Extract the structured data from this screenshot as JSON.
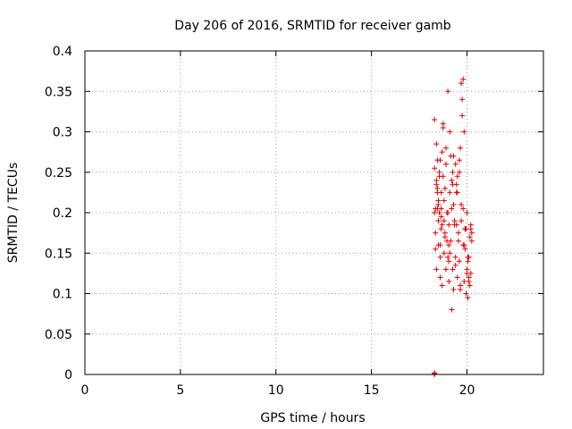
{
  "chart_data": {
    "type": "scatter",
    "title": "Day 206 of 2016, SRMTID for receiver gamb",
    "xlabel": "GPS time / hours",
    "ylabel": "SRMTID / TECUs",
    "xlim": [
      0,
      24
    ],
    "ylim": [
      0,
      0.4
    ],
    "x_ticks": [
      0,
      5,
      10,
      15,
      20
    ],
    "y_ticks": [
      0,
      0.05,
      0.1,
      0.15,
      0.2,
      0.25,
      0.3,
      0.35,
      0.4
    ],
    "x_tick_labels": [
      "0",
      "5",
      "10",
      "15",
      "20"
    ],
    "y_tick_labels": [
      "0",
      "0.05",
      "0.1",
      "0.15",
      "0.2",
      "0.25",
      "0.3",
      "0.35",
      "0.4"
    ],
    "grid": true,
    "marker": "plus",
    "color": "#e00000",
    "series": [
      {
        "x": [
          18.3,
          18.3,
          18.3,
          18.35,
          18.35,
          18.4,
          18.4,
          18.4,
          18.45,
          18.45,
          18.5,
          18.5,
          18.5,
          18.55,
          18.55,
          18.6,
          18.6,
          18.6,
          18.65,
          18.65,
          18.7,
          18.7,
          18.75,
          18.75,
          18.8,
          18.8,
          18.85,
          18.9,
          18.9,
          18.95,
          19.0,
          19.0,
          19.05,
          19.05,
          19.1,
          19.1,
          19.15,
          19.2,
          19.2,
          19.25,
          19.3,
          19.3,
          19.35,
          19.4,
          19.4,
          19.45,
          19.5,
          19.5,
          19.55,
          19.6,
          19.6,
          19.65,
          19.7,
          19.7,
          19.75,
          19.8,
          19.8,
          19.85,
          19.9,
          19.9,
          19.95,
          20.0,
          20.0,
          20.05,
          20.1,
          20.1,
          20.15,
          20.2,
          20.2,
          20.25,
          18.35,
          18.45,
          18.55,
          18.65,
          18.75,
          18.85,
          18.95,
          19.05,
          19.15,
          19.25,
          19.35,
          19.45,
          19.55,
          19.65,
          19.75,
          19.85,
          19.95,
          20.05,
          20.15,
          20.25,
          18.4,
          18.6,
          18.8,
          19.0,
          19.2,
          19.4,
          19.6,
          19.8,
          20.0,
          20.2,
          18.5,
          18.7,
          18.9,
          19.1,
          19.3,
          19.5,
          19.7,
          19.9,
          20.1,
          18.45,
          18.65,
          18.85,
          19.05,
          19.25,
          19.45,
          19.65,
          19.85,
          20.05,
          18.3,
          18.3,
          18.3
        ],
        "y": [
          0.315,
          0.255,
          0.2,
          0.175,
          0.155,
          0.285,
          0.235,
          0.13,
          0.265,
          0.225,
          0.21,
          0.19,
          0.16,
          0.245,
          0.2,
          0.145,
          0.12,
          0.265,
          0.205,
          0.18,
          0.11,
          0.275,
          0.305,
          0.245,
          0.215,
          0.19,
          0.17,
          0.13,
          0.28,
          0.165,
          0.2,
          0.145,
          0.185,
          0.115,
          0.225,
          0.15,
          0.165,
          0.08,
          0.24,
          0.13,
          0.21,
          0.105,
          0.19,
          0.26,
          0.145,
          0.235,
          0.12,
          0.225,
          0.175,
          0.14,
          0.25,
          0.105,
          0.21,
          0.36,
          0.32,
          0.205,
          0.16,
          0.115,
          0.18,
          0.155,
          0.1,
          0.2,
          0.13,
          0.095,
          0.145,
          0.115,
          0.11,
          0.125,
          0.18,
          0.175,
          0.205,
          0.23,
          0.25,
          0.225,
          0.31,
          0.175,
          0.2,
          0.14,
          0.27,
          0.235,
          0.185,
          0.225,
          0.165,
          0.28,
          0.34,
          0.3,
          0.18,
          0.14,
          0.17,
          0.165,
          0.24,
          0.16,
          0.15,
          0.35,
          0.205,
          0.135,
          0.265,
          0.365,
          0.125,
          0.185,
          0.215,
          0.185,
          0.26,
          0.3,
          0.27,
          0.245,
          0.19,
          0.18,
          0.12,
          0.205,
          0.195,
          0.23,
          0.16,
          0.25,
          0.185,
          0.11,
          0.16,
          0.145,
          0.0,
          0.002,
          0.001
        ]
      }
    ]
  }
}
